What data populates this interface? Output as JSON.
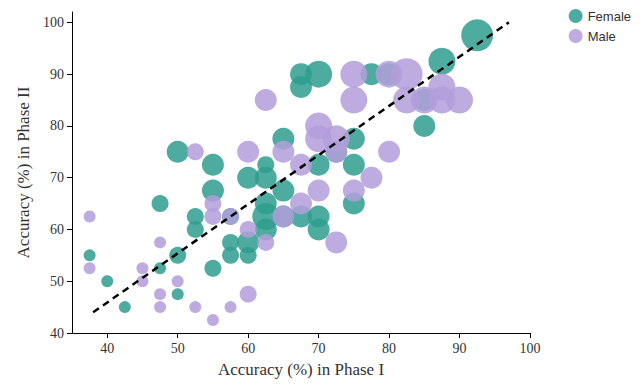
{
  "chart_data": {
    "type": "scatter",
    "x_label": "Accuracy (%) in Phase I",
    "y_label": "Accuracy (%) in Phase II",
    "xlim": [
      35,
      100
    ],
    "ylim": [
      40,
      102
    ],
    "xticks": [
      40,
      50,
      60,
      70,
      80,
      90,
      100
    ],
    "yticks": [
      40,
      50,
      60,
      70,
      80,
      90,
      100
    ],
    "grid": false,
    "legend": "top right",
    "marker": "circle",
    "series": [
      {
        "name": "Female",
        "color": "#2e9e8e",
        "x": [
          37.5,
          40,
          42.5,
          47.5,
          47.5,
          50,
          50,
          50,
          52.5,
          52.5,
          55,
          55,
          55,
          57.5,
          57.5,
          60,
          60,
          60,
          62.5,
          62.5,
          62.5,
          62.5,
          65,
          65,
          65,
          67.5,
          67.5,
          67.5,
          70,
          70,
          70,
          70,
          72.5,
          75,
          75,
          75,
          77.5,
          80,
          85,
          85,
          87.5,
          92.5,
          62.5,
          57.5
        ],
        "values": [
          55,
          50,
          45,
          65,
          52.5,
          47.5,
          55,
          75,
          62.5,
          60,
          72.5,
          67.5,
          52.5,
          55,
          62.5,
          57.5,
          55,
          70,
          65,
          70,
          62.5,
          60,
          77.5,
          67.5,
          62.5,
          90,
          87.5,
          62.5,
          90,
          72.5,
          62.5,
          60,
          75,
          77.5,
          72.5,
          65,
          90,
          90,
          80,
          85,
          92.5,
          97.5,
          72.5,
          57.5
        ],
        "sizes": [
          1,
          1,
          1,
          2,
          1,
          1,
          2,
          3,
          2,
          2,
          3,
          3,
          2,
          2,
          2,
          3,
          2,
          3,
          3,
          3,
          4,
          3,
          3,
          3,
          3,
          3,
          3,
          3,
          4,
          3,
          3,
          3,
          3,
          3,
          3,
          3,
          3,
          3,
          3,
          3,
          4,
          5,
          2,
          2
        ]
      },
      {
        "name": "Male",
        "color": "#b39ddb",
        "x": [
          37.5,
          37.5,
          45,
          45,
          47.5,
          47.5,
          47.5,
          50,
          52.5,
          52.5,
          55,
          55,
          55,
          57.5,
          57.5,
          60,
          60,
          62.5,
          62.5,
          65,
          65,
          67.5,
          67.5,
          70,
          70,
          70,
          72.5,
          72.5,
          72.5,
          75,
          75,
          75,
          77.5,
          80,
          80,
          82.5,
          82.5,
          85,
          87.5,
          87.5,
          90,
          60
        ],
        "values": [
          62.5,
          52.5,
          50,
          52.5,
          47.5,
          45,
          57.5,
          50,
          45,
          75,
          42.5,
          65,
          62.5,
          45,
          62.5,
          47.5,
          60,
          85,
          57.5,
          75,
          62.5,
          65,
          72.5,
          80,
          77.5,
          67.5,
          75,
          57.5,
          77.5,
          90,
          85,
          67.5,
          70,
          75,
          90,
          90,
          85,
          85,
          85,
          87.5,
          85,
          75
        ],
        "sizes": [
          1,
          1,
          1,
          1,
          1,
          1,
          1,
          1,
          1,
          2,
          1,
          2,
          2,
          1,
          2,
          2,
          2,
          3,
          2,
          3,
          3,
          3,
          3,
          4,
          4,
          3,
          3,
          3,
          4,
          4,
          4,
          3,
          3,
          3,
          4,
          5,
          4,
          4,
          4,
          4,
          4,
          3
        ]
      }
    ],
    "trend_line": {
      "x": [
        38,
        97
      ],
      "y": [
        44,
        100
      ],
      "color": "#000000",
      "line_style": "dashed"
    }
  }
}
